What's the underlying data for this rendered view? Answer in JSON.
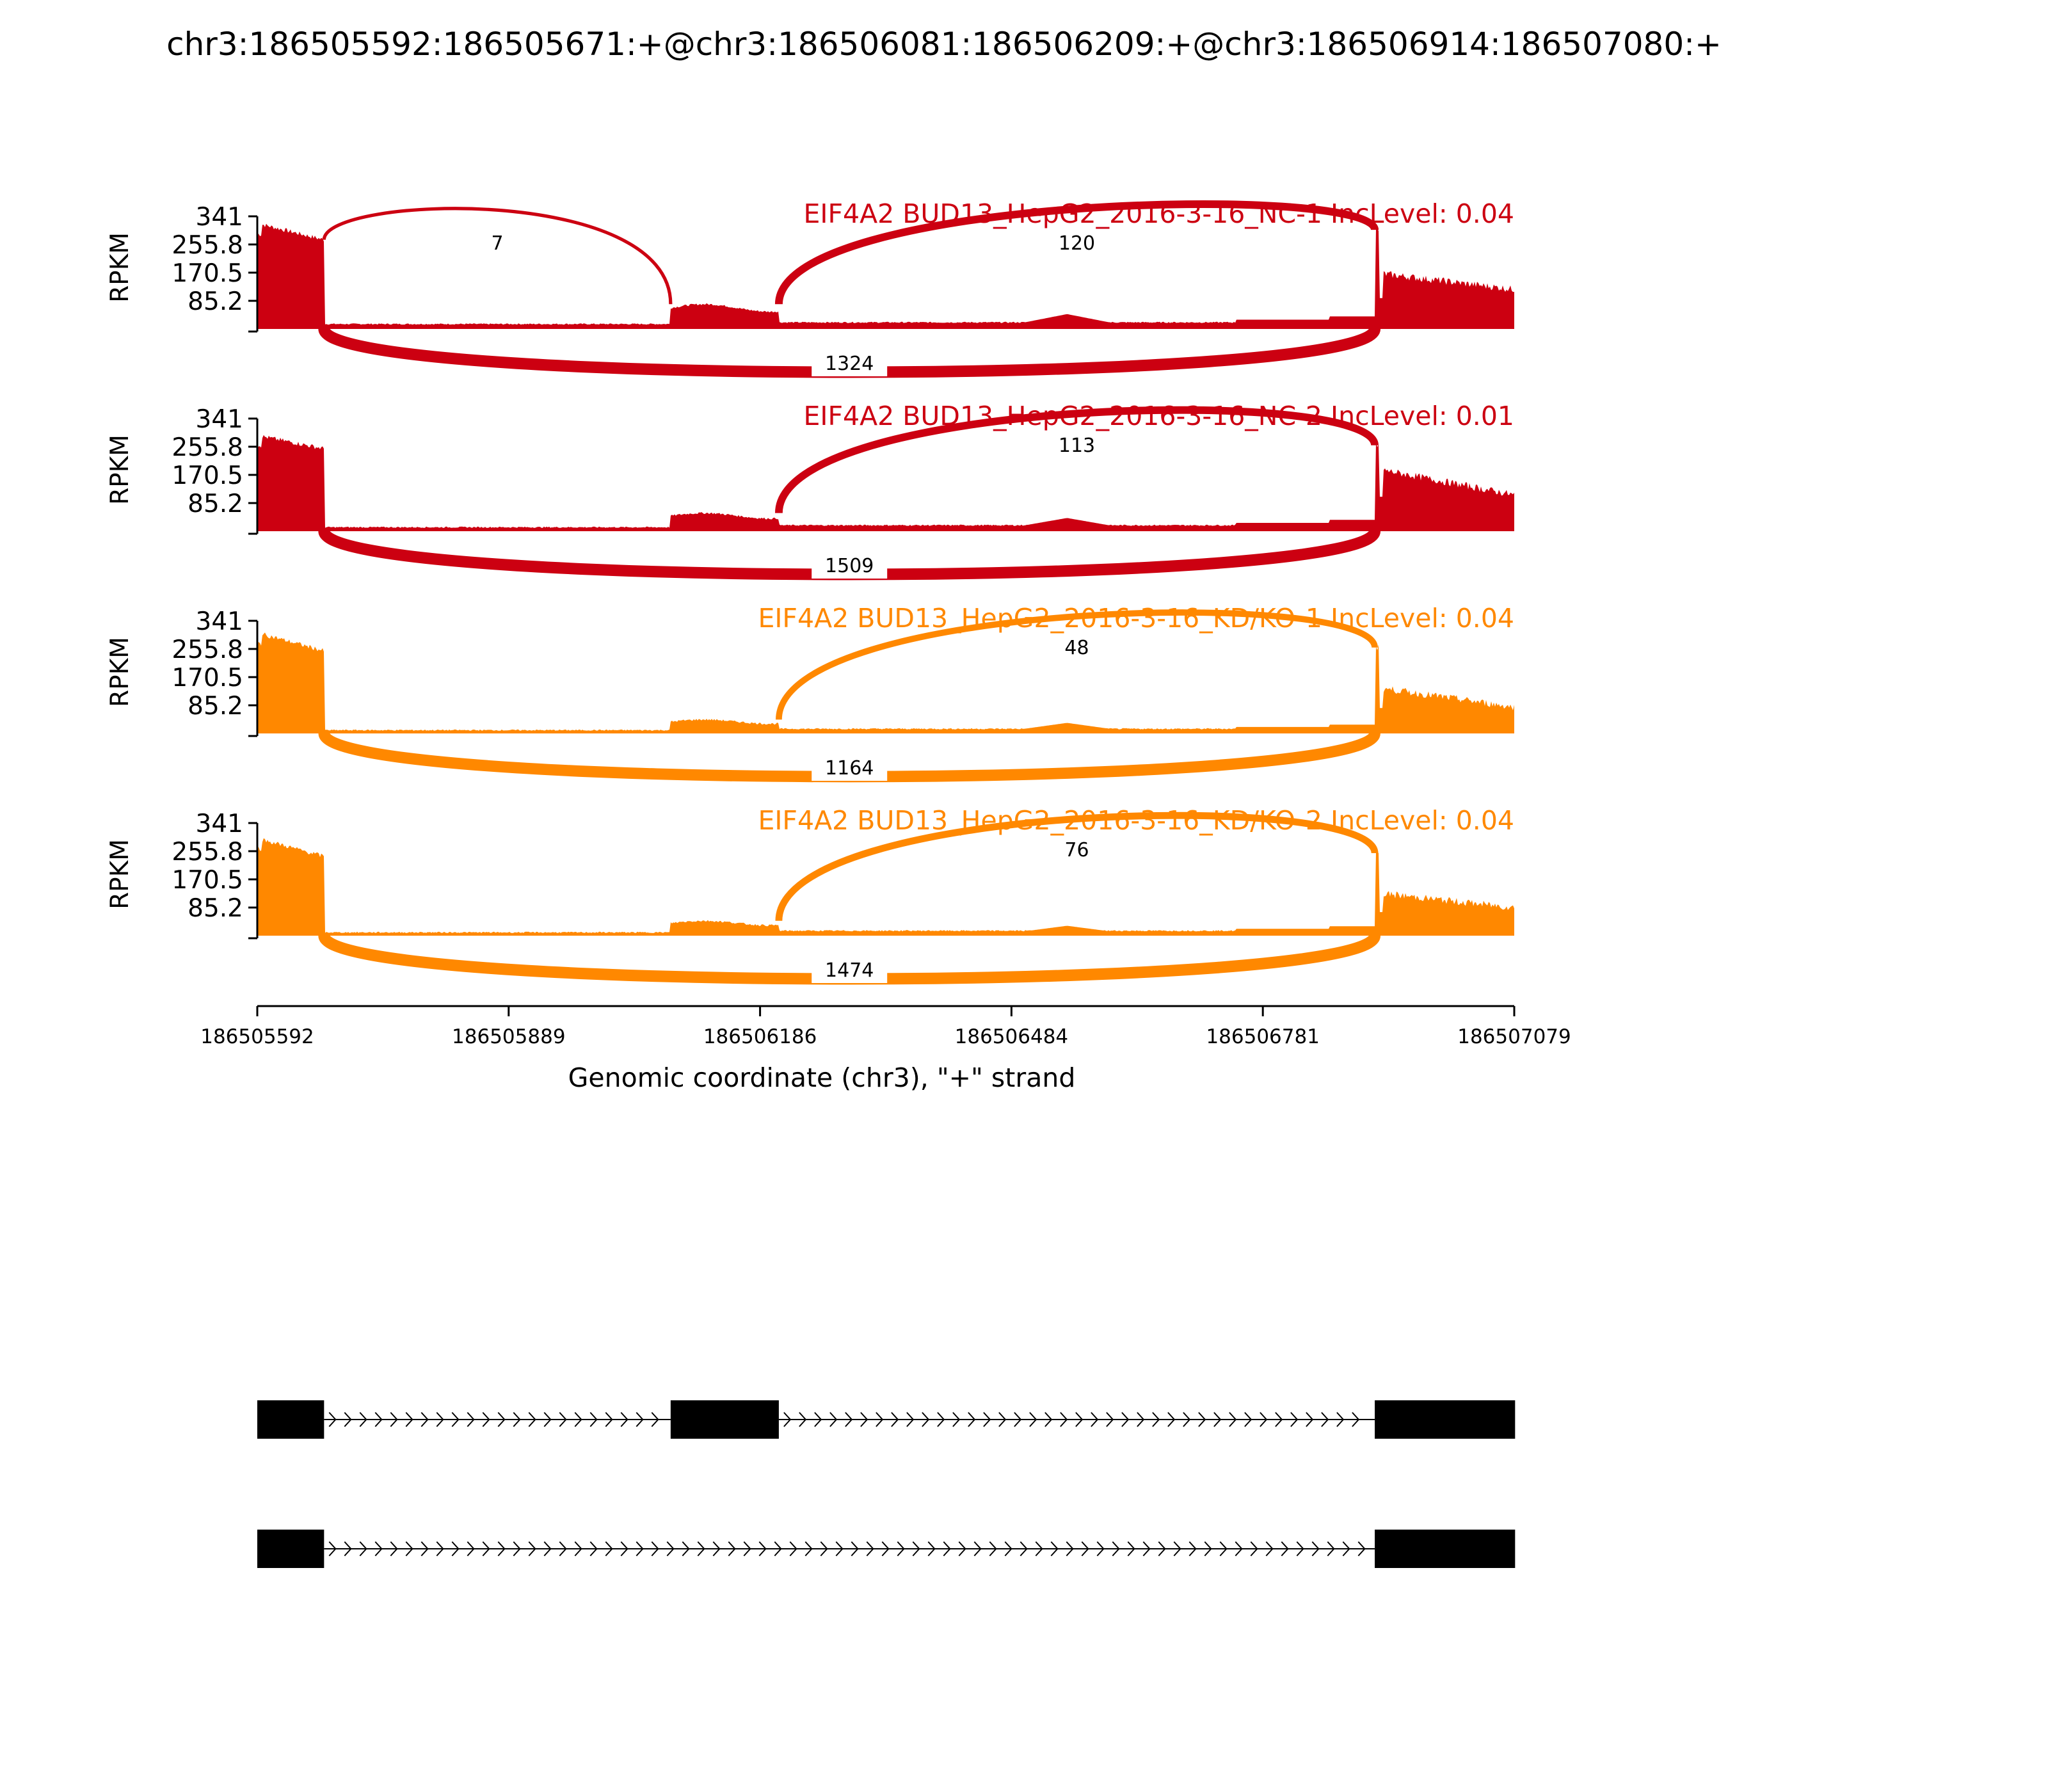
{
  "title": "chr3:186505592:186505671:+@chr3:186506081:186506209:+@chr3:186506914:186507080:+",
  "chart_data": {
    "type": "area",
    "subtype": "sashimi",
    "xlabel": "Genomic coordinate (chr3), \"+\" strand",
    "ylabel": "RPKM",
    "xlim": [
      186505592,
      186507079
    ],
    "ylim": [
      0,
      341
    ],
    "xticks": [
      186505592,
      186505889,
      186506186,
      186506484,
      186506781,
      186507079
    ],
    "yticks": [
      "85.2",
      "170.5",
      "255.8",
      "341"
    ],
    "exons": [
      {
        "start": 186505592,
        "end": 186505671
      },
      {
        "start": 186506081,
        "end": 186506209
      },
      {
        "start": 186506914,
        "end": 186507080
      }
    ],
    "tracks": [
      {
        "label": "EIF4A2 BUD13_HepG2_2016-3-16_NC-1 IncLevel: 0.04",
        "color": "#cc0011",
        "levels": {
          "exon1": 320,
          "exon1_end": 270,
          "intron1": 15,
          "exon2": 75,
          "intron2": 20,
          "intron2_bump": 45,
          "exon3_start": 300,
          "exon3": 170,
          "exon3_end": 120
        },
        "junctions": [
          {
            "from": 186505671,
            "to": 186506081,
            "count": "7",
            "side": "above"
          },
          {
            "from": 186506209,
            "to": 186506914,
            "count": "120",
            "side": "above"
          },
          {
            "from": 186505671,
            "to": 186506914,
            "count": "1324",
            "side": "below"
          }
        ]
      },
      {
        "label": "EIF4A2 BUD13_HepG2_2016-3-16_NC-2 IncLevel: 0.01",
        "color": "#cc0011",
        "levels": {
          "exon1": 290,
          "exon1_end": 250,
          "intron1": 12,
          "exon2": 55,
          "intron2": 18,
          "intron2_bump": 40,
          "exon3_start": 260,
          "exon3": 190,
          "exon3_end": 110
        },
        "junctions": [
          {
            "from": 186506209,
            "to": 186506914,
            "count": "113",
            "side": "above"
          },
          {
            "from": 186505671,
            "to": 186506914,
            "count": "1509",
            "side": "below"
          }
        ]
      },
      {
        "label": "EIF4A2 BUD13_HepG2_2016-3-16_KD/KO-1 IncLevel: 0.04",
        "color": "#ff8800",
        "levels": {
          "exon1": 305,
          "exon1_end": 250,
          "intron1": 10,
          "exon2": 42,
          "intron2": 14,
          "intron2_bump": 32,
          "exon3_start": 260,
          "exon3": 140,
          "exon3_end": 80
        },
        "junctions": [
          {
            "from": 186506209,
            "to": 186506914,
            "count": "48",
            "side": "above"
          },
          {
            "from": 186505671,
            "to": 186506914,
            "count": "1164",
            "side": "below"
          }
        ]
      },
      {
        "label": "EIF4A2 BUD13_HepG2_2016-3-16_KD/KO-2 IncLevel: 0.04",
        "color": "#ff8800",
        "levels": {
          "exon1": 295,
          "exon1_end": 240,
          "intron1": 10,
          "exon2": 45,
          "intron2": 15,
          "intron2_bump": 30,
          "exon3_start": 250,
          "exon3": 130,
          "exon3_end": 85
        },
        "junctions": [
          {
            "from": 186506209,
            "to": 186506914,
            "count": "76",
            "side": "above"
          },
          {
            "from": 186505671,
            "to": 186506914,
            "count": "1474",
            "side": "below"
          }
        ]
      }
    ],
    "isoforms": [
      {
        "exons": [
          [
            186505592,
            186505671
          ],
          [
            186506081,
            186506209
          ],
          [
            186506914,
            186507080
          ]
        ]
      },
      {
        "exons": [
          [
            186505592,
            186505671
          ],
          [
            186506914,
            186507080
          ]
        ]
      }
    ]
  }
}
